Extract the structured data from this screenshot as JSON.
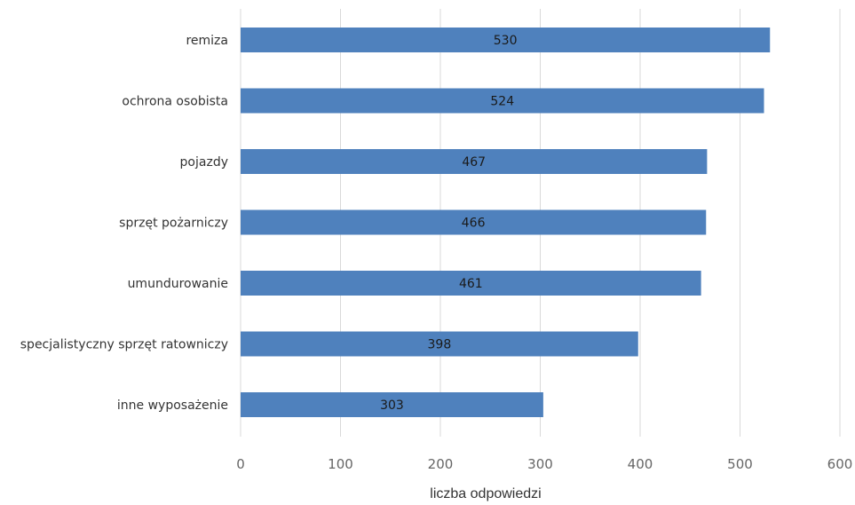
{
  "chart_data": {
    "type": "bar",
    "orientation": "horizontal",
    "categories": [
      "remiza",
      "ochrona osobista",
      "pojazdy",
      "sprzęt pożarniczy",
      "umundurowanie",
      "specjalistyczny sprzęt ratowniczy",
      "inne wyposażenie"
    ],
    "values": [
      530,
      524,
      467,
      466,
      461,
      398,
      303
    ],
    "data_labels": [
      "530",
      "524",
      "467",
      "466",
      "461",
      "398",
      "303"
    ],
    "xlabel": "liczba odpowiedzi",
    "ylabel": "",
    "xlim": [
      0,
      600
    ],
    "xticks": [
      0,
      100,
      200,
      300,
      400,
      500,
      600
    ],
    "xtick_labels": [
      "0",
      "100",
      "200",
      "300",
      "400",
      "500",
      "600"
    ],
    "grid": "vertical",
    "legend": "none",
    "bar_color": "#4F81BD",
    "grid_color": "#D9D9D9"
  }
}
